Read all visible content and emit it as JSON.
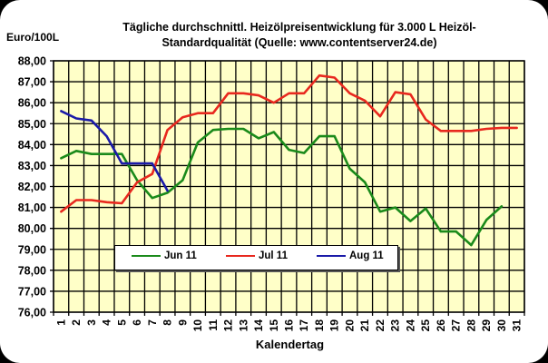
{
  "chart_data": {
    "type": "line",
    "title": "Tägliche durchschnittl. Heizölpreisentwicklung für 3.000 L Heizöl-Standardqualität (Quelle: www.contentserver24.de)",
    "title_lines": [
      "Tägliche durchschnittl. Heizölpreisentwicklung für 3.000 L Heizöl-",
      "Standardqualität (Quelle: www.contentserver24.de)"
    ],
    "xlabel": "Kalendertag",
    "ylabel": "Euro/100L",
    "ylim": [
      76,
      88
    ],
    "yticks": [
      "76,00",
      "77,00",
      "78,00",
      "79,00",
      "80,00",
      "81,00",
      "82,00",
      "83,00",
      "84,00",
      "85,00",
      "86,00",
      "87,00",
      "88,00"
    ],
    "categories": [
      "1",
      "2",
      "3",
      "4",
      "5",
      "6",
      "7",
      "8",
      "9",
      "10",
      "11",
      "12",
      "13",
      "14",
      "15",
      "16",
      "17",
      "18",
      "19",
      "20",
      "21",
      "22",
      "23",
      "24",
      "25",
      "26",
      "27",
      "28",
      "29",
      "30",
      "31"
    ],
    "grid": true,
    "legend_position": "inside-bottom-left",
    "series": [
      {
        "name": "Jun 11",
        "color": "#1a8a1a",
        "values": [
          83.35,
          83.7,
          83.55,
          83.55,
          83.55,
          82.3,
          81.45,
          81.7,
          82.3,
          84.1,
          84.7,
          84.75,
          84.75,
          84.3,
          84.6,
          83.75,
          83.6,
          84.4,
          84.4,
          82.85,
          82.2,
          80.8,
          81.0,
          80.35,
          80.95,
          79.85,
          79.85,
          79.2,
          80.4,
          81.05,
          null
        ]
      },
      {
        "name": "Jul 11",
        "color": "#e8281e",
        "values": [
          80.8,
          81.35,
          81.35,
          81.25,
          81.2,
          82.2,
          82.6,
          84.7,
          85.3,
          85.5,
          85.5,
          86.45,
          86.45,
          86.35,
          86.0,
          86.45,
          86.45,
          87.3,
          87.2,
          86.45,
          86.1,
          85.35,
          86.5,
          86.4,
          85.2,
          84.65,
          84.65,
          84.65,
          84.75,
          84.8,
          84.8
        ]
      },
      {
        "name": "Aug 11",
        "color": "#1a1aa8",
        "values": [
          85.6,
          85.25,
          85.15,
          84.4,
          83.1,
          83.1,
          83.1,
          81.8,
          null,
          null,
          null,
          null,
          null,
          null,
          null,
          null,
          null,
          null,
          null,
          null,
          null,
          null,
          null,
          null,
          null,
          null,
          null,
          null,
          null,
          null,
          null
        ]
      }
    ]
  },
  "legend": {
    "items": [
      {
        "label": "Jun 11",
        "color": "#1a8a1a"
      },
      {
        "label": "Jul 11",
        "color": "#e8281e"
      },
      {
        "label": "Aug 11",
        "color": "#1a1aa8"
      }
    ]
  },
  "colors": {
    "plot_background": "#ffffc8",
    "grid": "#000000"
  }
}
